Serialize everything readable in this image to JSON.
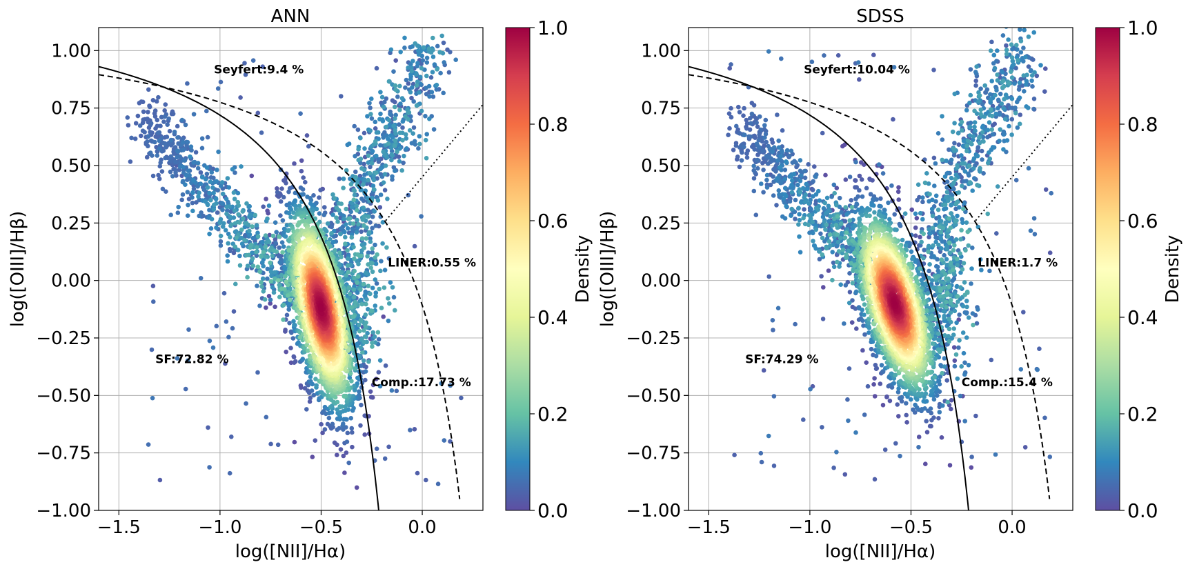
{
  "chart_data": [
    {
      "type": "scatter",
      "title": "ANN",
      "xlabel": "log([NII]/Hα)",
      "ylabel": "log([OIII]/Hβ)",
      "xlim": [
        -1.6,
        0.3
      ],
      "ylim": [
        -1.0,
        1.1
      ],
      "xticks": [
        -1.5,
        -1.0,
        -0.5,
        0.0
      ],
      "xtick_labels": [
        "−1.5",
        "−1.0",
        "−0.5",
        "0.0"
      ],
      "yticks": [
        -1.0,
        -0.75,
        -0.5,
        -0.25,
        0.0,
        0.25,
        0.5,
        0.75,
        1.0
      ],
      "ytick_labels": [
        "−1.00",
        "−0.75",
        "−0.50",
        "−0.25",
        "0.00",
        "0.25",
        "0.50",
        "0.75",
        "1.00"
      ],
      "grid": true,
      "density_core": {
        "x": -0.5,
        "y": -0.12,
        "sx": 0.085,
        "sy": 0.22,
        "rho": -0.55
      },
      "annotations": [
        {
          "text": "Seyfert:9.4 %",
          "x": -1.03,
          "y": 0.9
        },
        {
          "text": "LINER:0.55 %",
          "x": -0.17,
          "y": 0.06
        },
        {
          "text": "SF:72.82 %",
          "x": -1.32,
          "y": -0.36
        },
        {
          "text": "Comp.:17.73 %",
          "x": -0.25,
          "y": -0.46
        }
      ],
      "colorbar": {
        "label": "Density",
        "range": [
          0.0,
          1.0
        ],
        "ticks": [
          "0.0",
          "0.2",
          "0.4",
          "0.6",
          "0.8",
          "1.0"
        ]
      }
    },
    {
      "type": "scatter",
      "title": "SDSS",
      "xlabel": "log([NII]/Hα)",
      "ylabel": "log([OIII]/Hβ)",
      "xlim": [
        -1.6,
        0.3
      ],
      "ylim": [
        -1.0,
        1.1
      ],
      "xticks": [
        -1.5,
        -1.0,
        -0.5,
        0.0
      ],
      "xtick_labels": [
        "−1.5",
        "−1.0",
        "−0.5",
        "0.0"
      ],
      "yticks": [
        -1.0,
        -0.75,
        -0.5,
        -0.25,
        0.0,
        0.25,
        0.5,
        0.75,
        1.0
      ],
      "ytick_labels": [
        "−1.00",
        "−0.75",
        "−0.50",
        "−0.25",
        "0.00",
        "0.25",
        "0.50",
        "0.75",
        "1.00"
      ],
      "grid": true,
      "density_core": {
        "x": -0.58,
        "y": -0.1,
        "sx": 0.1,
        "sy": 0.2,
        "rho": -0.6
      },
      "annotations": [
        {
          "text": "Seyfert:10.04 %",
          "x": -1.03,
          "y": 0.9
        },
        {
          "text": "LINER:1.7 %",
          "x": -0.17,
          "y": 0.06
        },
        {
          "text": "SF:74.29 %",
          "x": -1.32,
          "y": -0.36
        },
        {
          "text": "Comp.:15.4 %",
          "x": -0.25,
          "y": -0.46
        }
      ],
      "colorbar": {
        "label": "Density",
        "range": [
          0.0,
          1.0
        ],
        "ticks": [
          "0.0",
          "0.2",
          "0.4",
          "0.6",
          "0.8",
          "1.0"
        ]
      }
    }
  ],
  "colors": {
    "spectral": [
      "#5e4fa2",
      "#3288bd",
      "#66c2a5",
      "#abdda4",
      "#e6f598",
      "#ffffbf",
      "#fee08b",
      "#fdae61",
      "#f46d43",
      "#d53e4f",
      "#9e0142"
    ],
    "grid": "#b0b0b0",
    "line": "#000000"
  }
}
